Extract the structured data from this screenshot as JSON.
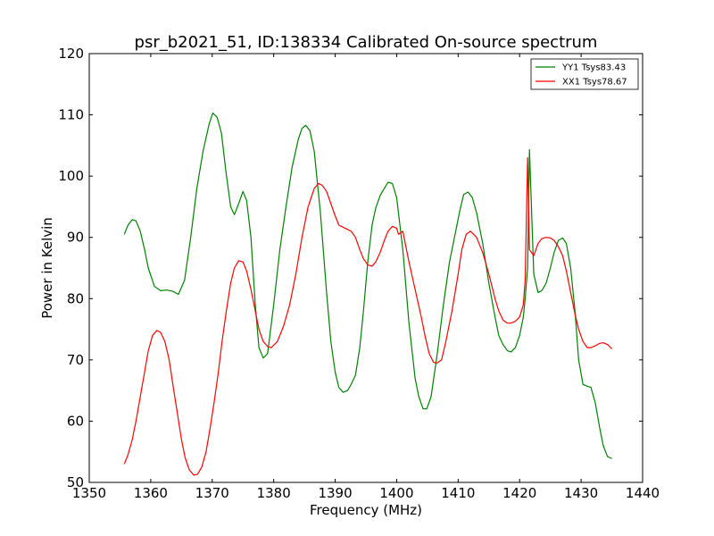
{
  "chart_data": {
    "type": "line",
    "title": "psr_b2021_51, ID:138334 Calibrated On-source spectrum",
    "xlabel": "Frequency (MHz)",
    "ylabel": "Power in Kelvin",
    "xlim": [
      1350,
      1440
    ],
    "ylim": [
      50,
      120
    ],
    "xticks": [
      "1350",
      "1360",
      "1370",
      "1380",
      "1390",
      "1400",
      "1410",
      "1420",
      "1430",
      "1440"
    ],
    "yticks": [
      "50",
      "60",
      "70",
      "80",
      "90",
      "100",
      "110",
      "120"
    ],
    "grid": false,
    "legend_position": "top-right",
    "series": [
      {
        "name": "YY1 Tsys83.43",
        "color": "#008000",
        "x": [
          1355.7,
          1356.3,
          1357.0,
          1357.6,
          1358.3,
          1359.0,
          1359.6,
          1360.6,
          1361.6,
          1362.6,
          1363.6,
          1364.5,
          1365.5,
          1366.5,
          1367.5,
          1368.5,
          1369.5,
          1370.1,
          1370.8,
          1371.5,
          1372.2,
          1373.0,
          1373.6,
          1374.3,
          1375.0,
          1375.6,
          1376.3,
          1377.0,
          1377.6,
          1378.3,
          1379.0,
          1380.0,
          1381.0,
          1382.0,
          1383.0,
          1384.0,
          1384.6,
          1385.2,
          1385.9,
          1386.6,
          1387.6,
          1388.6,
          1389.3,
          1390.0,
          1390.6,
          1391.3,
          1392.0,
          1392.6,
          1393.3,
          1394.0,
          1394.6,
          1395.3,
          1396.0,
          1396.6,
          1397.3,
          1398.0,
          1398.6,
          1399.3,
          1400.0,
          1401.0,
          1402.0,
          1403.0,
          1403.6,
          1404.3,
          1404.9,
          1405.6,
          1406.6,
          1407.6,
          1408.6,
          1409.6,
          1410.3,
          1410.9,
          1411.6,
          1412.3,
          1413.0,
          1414.0,
          1415.0,
          1416.0,
          1416.6,
          1417.3,
          1418.0,
          1418.6,
          1419.3,
          1420.0,
          1420.6,
          1420.9,
          1421.3,
          1421.6,
          1422.3,
          1423.0,
          1423.6,
          1424.3,
          1425.0,
          1425.6,
          1426.3,
          1427.0,
          1427.6,
          1428.3,
          1429.0,
          1429.6,
          1430.3,
          1431.0,
          1431.6,
          1432.3,
          1433.0,
          1433.6,
          1434.3,
          1435.0
        ],
        "values": [
          90.5,
          92.0,
          92.9,
          92.7,
          91.0,
          88.0,
          85.0,
          82.0,
          81.3,
          81.4,
          81.2,
          80.7,
          83.0,
          90.0,
          98.0,
          104.0,
          108.5,
          110.3,
          109.6,
          107.0,
          101.0,
          95.0,
          93.7,
          95.5,
          97.5,
          96.0,
          90.0,
          79.0,
          72.0,
          70.3,
          71.0,
          79.0,
          88.0,
          95.0,
          101.5,
          106.0,
          107.8,
          108.3,
          107.4,
          104.0,
          94.0,
          81.0,
          73.0,
          68.0,
          65.5,
          64.7,
          65.0,
          66.0,
          67.5,
          72.0,
          78.0,
          86.0,
          92.0,
          94.8,
          96.8,
          98.0,
          99.0,
          98.8,
          96.5,
          88.0,
          76.0,
          67.0,
          64.0,
          62.0,
          62.0,
          64.0,
          71.0,
          79.0,
          86.0,
          91.0,
          94.5,
          97.0,
          97.4,
          96.5,
          94.0,
          89.0,
          82.5,
          77.0,
          74.0,
          72.5,
          71.5,
          71.3,
          72.0,
          74.0,
          77.0,
          80.0,
          85.0,
          104.3,
          84.0,
          81.0,
          81.3,
          82.5,
          85.0,
          87.5,
          89.5,
          89.9,
          89.0,
          85.0,
          78.0,
          70.0,
          66.0,
          65.7,
          65.5,
          63.0,
          59.0,
          56.0,
          54.2,
          53.9
        ]
      },
      {
        "name": "XX1 Tsys78.67",
        "color": "#ff0000",
        "x": [
          1355.7,
          1356.3,
          1357.0,
          1357.6,
          1358.3,
          1359.0,
          1359.6,
          1360.3,
          1361.0,
          1361.6,
          1362.3,
          1363.0,
          1363.6,
          1364.3,
          1365.0,
          1365.6,
          1366.3,
          1367.0,
          1367.6,
          1368.3,
          1369.0,
          1369.6,
          1370.3,
          1371.0,
          1371.6,
          1372.3,
          1373.0,
          1373.6,
          1374.3,
          1375.0,
          1375.6,
          1376.3,
          1377.0,
          1377.6,
          1378.3,
          1379.0,
          1379.6,
          1380.6,
          1381.6,
          1382.6,
          1383.6,
          1384.6,
          1385.6,
          1386.6,
          1387.3,
          1387.9,
          1388.6,
          1389.3,
          1390.0,
          1390.6,
          1391.6,
          1392.6,
          1393.3,
          1394.0,
          1394.6,
          1395.3,
          1396.0,
          1396.6,
          1397.3,
          1398.0,
          1398.6,
          1399.3,
          1400.0,
          1400.3,
          1401.0,
          1402.0,
          1403.0,
          1404.0,
          1404.6,
          1405.3,
          1406.0,
          1406.6,
          1407.3,
          1408.0,
          1409.0,
          1410.0,
          1410.6,
          1411.3,
          1412.0,
          1413.0,
          1414.0,
          1415.0,
          1416.0,
          1416.6,
          1417.3,
          1418.0,
          1418.6,
          1419.3,
          1420.0,
          1420.6,
          1420.9,
          1421.3,
          1421.6,
          1422.3,
          1423.0,
          1423.6,
          1424.3,
          1425.0,
          1425.6,
          1426.3,
          1427.0,
          1427.6,
          1428.3,
          1429.0,
          1429.6,
          1430.3,
          1431.0,
          1431.6,
          1432.3,
          1433.0,
          1433.6,
          1434.3,
          1435.0
        ],
        "values": [
          53.0,
          54.5,
          57.0,
          60.0,
          64.0,
          68.0,
          71.5,
          74.0,
          74.8,
          74.5,
          73.0,
          70.0,
          66.0,
          61.5,
          57.0,
          54.0,
          52.0,
          51.2,
          51.3,
          52.5,
          55.0,
          58.5,
          63.0,
          68.0,
          73.0,
          78.0,
          82.5,
          85.0,
          86.2,
          86.0,
          84.5,
          81.5,
          78.0,
          75.0,
          73.0,
          72.2,
          72.0,
          73.0,
          75.5,
          79.0,
          84.0,
          90.0,
          95.0,
          98.0,
          98.8,
          98.5,
          97.5,
          95.5,
          93.5,
          92.0,
          91.5,
          91.0,
          90.0,
          88.0,
          86.5,
          85.5,
          85.3,
          86.0,
          87.5,
          89.5,
          91.0,
          91.8,
          91.5,
          90.5,
          91.0,
          86.0,
          81.5,
          77.0,
          74.0,
          71.0,
          69.6,
          69.5,
          70.0,
          73.0,
          78.0,
          84.0,
          88.0,
          90.5,
          91.0,
          90.0,
          87.5,
          84.0,
          80.0,
          78.0,
          76.5,
          76.0,
          76.0,
          76.3,
          77.0,
          79.0,
          83.0,
          103.0,
          88.0,
          87.0,
          89.0,
          89.8,
          90.0,
          89.9,
          89.5,
          88.5,
          87.0,
          84.5,
          81.0,
          77.5,
          75.0,
          73.0,
          72.0,
          72.0,
          72.3,
          72.7,
          72.8,
          72.5,
          71.8
        ]
      }
    ]
  }
}
